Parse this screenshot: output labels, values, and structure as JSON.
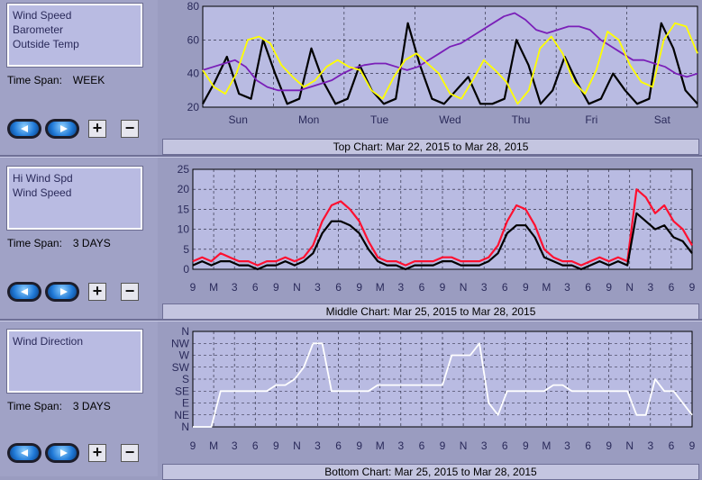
{
  "panels": [
    {
      "id": "top",
      "legend": [
        "Wind Speed",
        "Barometer",
        "Outside Temp"
      ],
      "timespan_label": "Time Span:",
      "timespan_value": "WEEK",
      "caption": "Top Chart:  Mar 22, 2015  to  Mar 28, 2015",
      "chart_data": {
        "type": "line",
        "ylim": [
          20,
          80
        ],
        "yticks": [
          20,
          40,
          60,
          80
        ],
        "xticks": [
          "Sun",
          "Mon",
          "Tue",
          "Wed",
          "Thu",
          "Fri",
          "Sat"
        ],
        "grid": true,
        "series": [
          {
            "name": "Wind Speed",
            "color": "#000000",
            "values": [
              22,
              35,
              50,
              28,
              25,
              60,
              40,
              22,
              25,
              55,
              35,
              22,
              25,
              45,
              30,
              22,
              25,
              70,
              45,
              25,
              22,
              30,
              38,
              22,
              22,
              25,
              60,
              45,
              22,
              30,
              50,
              35,
              22,
              25,
              40,
              30,
              22,
              25,
              70,
              55,
              30,
              22
            ]
          },
          {
            "name": "Barometer",
            "color": "#7a1fb8",
            "values": [
              42,
              44,
              46,
              48,
              44,
              36,
              32,
              30,
              30,
              30,
              32,
              34,
              36,
              40,
              43,
              45,
              46,
              46,
              44,
              42,
              44,
              48,
              52,
              56,
              58,
              62,
              66,
              70,
              74,
              76,
              72,
              66,
              64,
              66,
              68,
              68,
              66,
              60,
              56,
              52,
              48,
              48,
              46,
              44,
              40,
              38,
              40
            ]
          },
          {
            "name": "Outside Temp",
            "color": "#ffff00",
            "values": [
              42,
              32,
              28,
              40,
              60,
              62,
              58,
              45,
              38,
              32,
              36,
              44,
              48,
              44,
              42,
              30,
              25,
              38,
              48,
              52,
              46,
              40,
              28,
              25,
              36,
              48,
              42,
              35,
              22,
              30,
              55,
              62,
              52,
              35,
              28,
              42,
              65,
              60,
              45,
              35,
              32,
              60,
              70,
              68,
              52
            ]
          }
        ]
      }
    },
    {
      "id": "middle",
      "legend": [
        "Hi Wind Spd",
        "Wind Speed"
      ],
      "timespan_label": "Time Span:",
      "timespan_value": "3 DAYS",
      "caption": "Middle Chart:  Mar 25, 2015  to  Mar 28, 2015",
      "chart_data": {
        "type": "line",
        "ylim": [
          0,
          25
        ],
        "yticks": [
          0,
          5,
          10,
          15,
          20,
          25
        ],
        "xticks": [
          "9",
          "M",
          "3",
          "6",
          "9",
          "N",
          "3",
          "6",
          "9",
          "M",
          "3",
          "6",
          "9",
          "N",
          "3",
          "6",
          "9",
          "M",
          "3",
          "6",
          "9",
          "N",
          "3",
          "6",
          "9"
        ],
        "grid": true,
        "series": [
          {
            "name": "Hi Wind Spd",
            "color": "#ff1030",
            "values": [
              2,
              3,
              2,
              4,
              3,
              2,
              2,
              1,
              2,
              2,
              3,
              2,
              3,
              6,
              12,
              16,
              17,
              15,
              12,
              7,
              3,
              2,
              2,
              1,
              2,
              2,
              2,
              3,
              3,
              2,
              2,
              2,
              3,
              6,
              12,
              16,
              15,
              11,
              5,
              3,
              2,
              2,
              1,
              2,
              3,
              2,
              3,
              2,
              20,
              18,
              14,
              16,
              12,
              10,
              6
            ]
          },
          {
            "name": "Wind Speed",
            "color": "#000000",
            "values": [
              1,
              2,
              1,
              2,
              2,
              1,
              1,
              0,
              1,
              1,
              2,
              1,
              2,
              4,
              9,
              12,
              12,
              11,
              9,
              5,
              2,
              1,
              1,
              0,
              1,
              1,
              1,
              2,
              2,
              1,
              1,
              1,
              2,
              4,
              9,
              11,
              11,
              8,
              3,
              2,
              1,
              1,
              0,
              1,
              2,
              1,
              2,
              1,
              14,
              12,
              10,
              11,
              8,
              7,
              4
            ]
          }
        ]
      }
    },
    {
      "id": "bottom",
      "legend": [
        "Wind Direction"
      ],
      "timespan_label": "Time Span:",
      "timespan_value": "3 DAYS",
      "caption": "Bottom Chart:  Mar 25, 2015  to  Mar 28, 2015",
      "chart_data": {
        "type": "line",
        "yticks": [
          "N",
          "NW",
          "W",
          "SW",
          "S",
          "SE",
          "E",
          "NE",
          "N"
        ],
        "xticks": [
          "9",
          "M",
          "3",
          "6",
          "9",
          "N",
          "3",
          "6",
          "9",
          "M",
          "3",
          "6",
          "9",
          "N",
          "3",
          "6",
          "9",
          "M",
          "3",
          "6",
          "9",
          "N",
          "3",
          "6",
          "9"
        ],
        "grid": true,
        "series": [
          {
            "name": "Wind Direction",
            "color": "#ffffff",
            "values": [
              8,
              8,
              8,
              5,
              5,
              5,
              5,
              5,
              5,
              4.5,
              4.5,
              4,
              3,
              1,
              1,
              5,
              5,
              5,
              5,
              5,
              4.5,
              4.5,
              4.5,
              4.5,
              4.5,
              4.5,
              4.5,
              4.5,
              2,
              2,
              2,
              1,
              6,
              7,
              5,
              5,
              5,
              5,
              5,
              4.5,
              4.5,
              5,
              5,
              5,
              5,
              5,
              5,
              5,
              7,
              7,
              4,
              5,
              5,
              6,
              7
            ]
          }
        ]
      }
    }
  ],
  "colors": {
    "plot_bg": "#b9bbe2",
    "grid": "#1a1a2e",
    "axis_text": "#2a2a5a"
  }
}
